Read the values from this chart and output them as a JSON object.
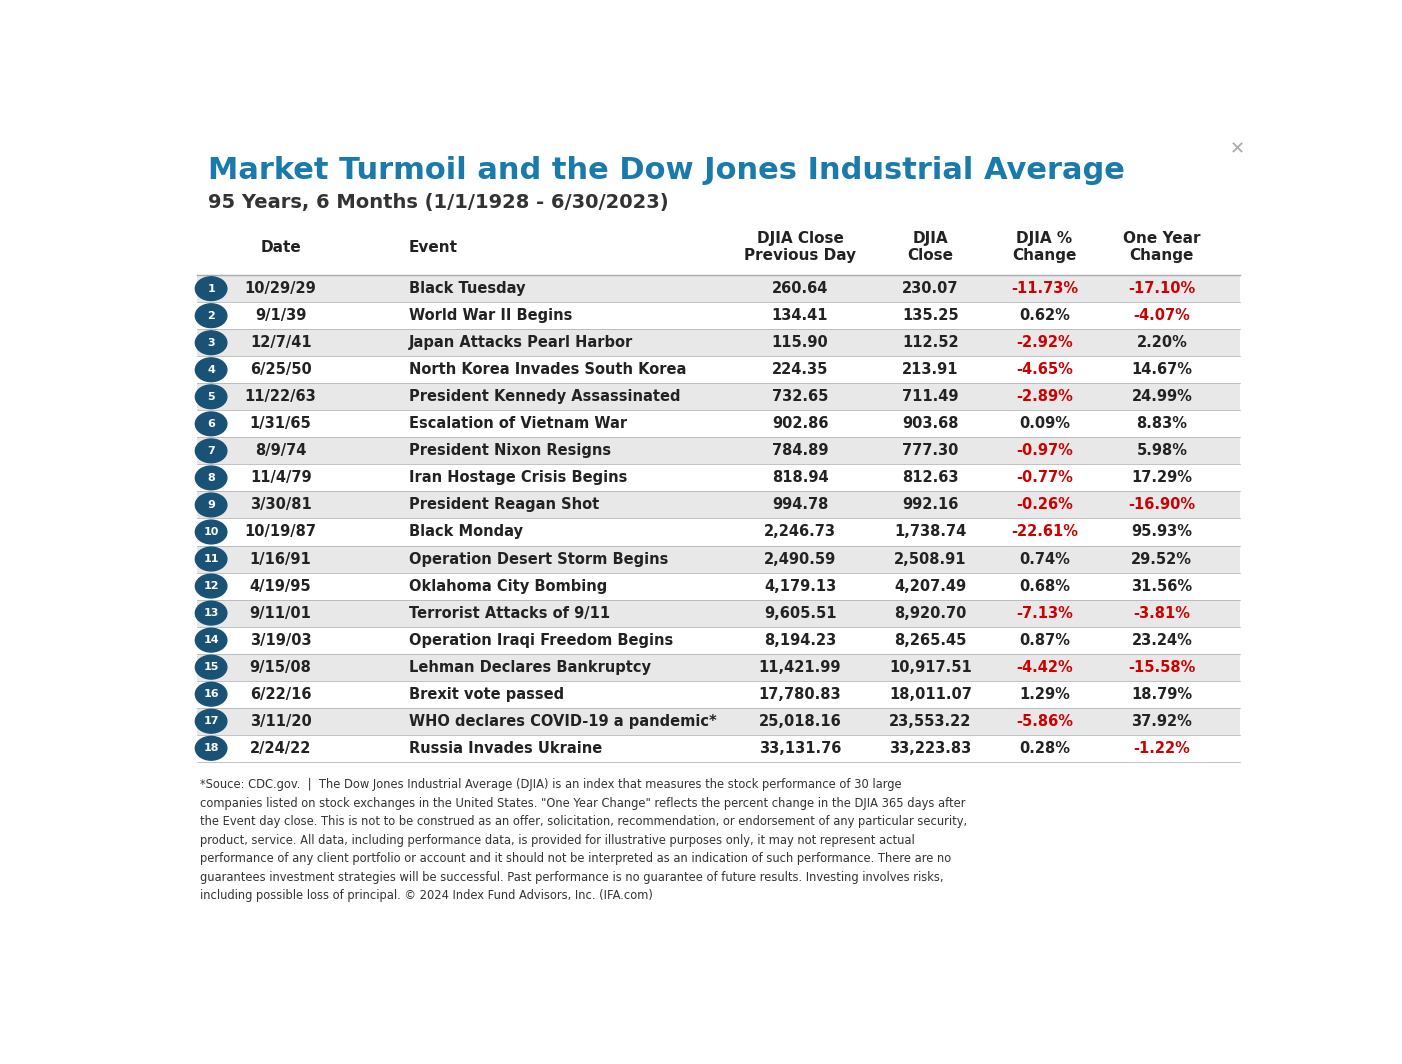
{
  "title": "Market Turmoil and the Dow Jones Industrial Average",
  "subtitle": "95 Years, 6 Months (1/1/1928 - 6/30/2023)",
  "title_color": "#1a7aab",
  "subtitle_color": "#333333",
  "col_headers": [
    "Date",
    "Event",
    "DJIA Close\nPrevious Day",
    "DJIA\nClose",
    "DJIA %\nChange",
    "One Year\nChange"
  ],
  "rows": [
    [
      "10/29/29",
      "Black Tuesday",
      "260.64",
      "230.07",
      "-11.73%",
      "-17.10%"
    ],
    [
      "9/1/39",
      "World War II Begins",
      "134.41",
      "135.25",
      "0.62%",
      "-4.07%"
    ],
    [
      "12/7/41",
      "Japan Attacks Pearl Harbor",
      "115.90",
      "112.52",
      "-2.92%",
      "2.20%"
    ],
    [
      "6/25/50",
      "North Korea Invades South Korea",
      "224.35",
      "213.91",
      "-4.65%",
      "14.67%"
    ],
    [
      "11/22/63",
      "President Kennedy Assassinated",
      "732.65",
      "711.49",
      "-2.89%",
      "24.99%"
    ],
    [
      "1/31/65",
      "Escalation of Vietnam War",
      "902.86",
      "903.68",
      "0.09%",
      "8.83%"
    ],
    [
      "8/9/74",
      "President Nixon Resigns",
      "784.89",
      "777.30",
      "-0.97%",
      "5.98%"
    ],
    [
      "11/4/79",
      "Iran Hostage Crisis Begins",
      "818.94",
      "812.63",
      "-0.77%",
      "17.29%"
    ],
    [
      "3/30/81",
      "President Reagan Shot",
      "994.78",
      "992.16",
      "-0.26%",
      "-16.90%"
    ],
    [
      "10/19/87",
      "Black Monday",
      "2,246.73",
      "1,738.74",
      "-22.61%",
      "95.93%"
    ],
    [
      "1/16/91",
      "Operation Desert Storm Begins",
      "2,490.59",
      "2,508.91",
      "0.74%",
      "29.52%"
    ],
    [
      "4/19/95",
      "Oklahoma City Bombing",
      "4,179.13",
      "4,207.49",
      "0.68%",
      "31.56%"
    ],
    [
      "9/11/01",
      "Terrorist Attacks of 9/11",
      "9,605.51",
      "8,920.70",
      "-7.13%",
      "-3.81%"
    ],
    [
      "3/19/03",
      "Operation Iraqi Freedom Begins",
      "8,194.23",
      "8,265.45",
      "0.87%",
      "23.24%"
    ],
    [
      "9/15/08",
      "Lehman Declares Bankruptcy",
      "11,421.99",
      "10,917.51",
      "-4.42%",
      "-15.58%"
    ],
    [
      "6/22/16",
      "Brexit vote passed",
      "17,780.83",
      "18,011.07",
      "1.29%",
      "18.79%"
    ],
    [
      "3/11/20",
      "WHO declares COVID-19 a pandemic*",
      "25,018.16",
      "23,553.22",
      "-5.86%",
      "37.92%"
    ],
    [
      "2/24/22",
      "Russia Invades Ukraine",
      "33,131.76",
      "33,223.83",
      "0.28%",
      "-1.22%"
    ]
  ],
  "negative_pct_change": [
    true,
    false,
    true,
    true,
    true,
    false,
    true,
    true,
    true,
    true,
    false,
    false,
    true,
    false,
    true,
    false,
    true,
    false
  ],
  "negative_one_year": [
    true,
    true,
    false,
    false,
    false,
    false,
    false,
    false,
    true,
    false,
    false,
    false,
    true,
    false,
    true,
    false,
    false,
    true
  ],
  "circle_color": "#1a5276",
  "row_alt_color": "#e8e8e8",
  "row_white_color": "#ffffff",
  "red_color": "#cc0000",
  "black_color": "#222222",
  "footer_text": "*Souce: CDC.gov.  |  The Dow Jones Industrial Average (DJIA) is an index that measures the stock performance of 30 large\ncompanies listed on stock exchanges in the United States. \"One Year Change\" reflects the percent change in the DJIA 365 days after\nthe Event day close. This is not to be construed as an offer, solicitation, recommendation, or endorsement of any particular security,\nproduct, service. All data, including performance data, is provided for illustrative purposes only, it may not represent actual\nperformance of any client portfolio or account and it should not be interpreted as an indication of such performance. There are no\nguarantees investment strategies will be successful. Past performance is no guarantee of future results. Investing involves risks,\nincluding possible loss of principal. © 2024 Index Fund Advisors, Inc. (IFA.com)"
}
